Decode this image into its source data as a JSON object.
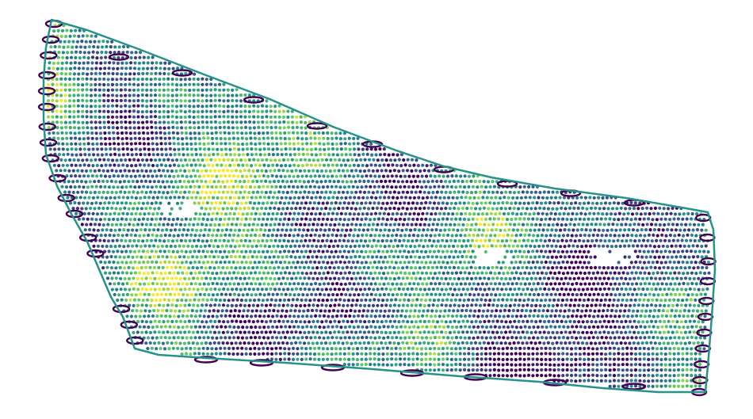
{
  "map": {
    "type": "yield-map-point-cloud",
    "colormap": "viridis",
    "colors": {
      "low": "#440154",
      "low_mid": "#3b528b",
      "mid": "#21918c",
      "high_mid": "#5ec962",
      "high": "#fde725",
      "boundary": "#26938a",
      "headland_loops": "#440154",
      "background": "#ffffff"
    },
    "grid_visible": false,
    "axes_visible": false,
    "legend_visible": false
  }
}
